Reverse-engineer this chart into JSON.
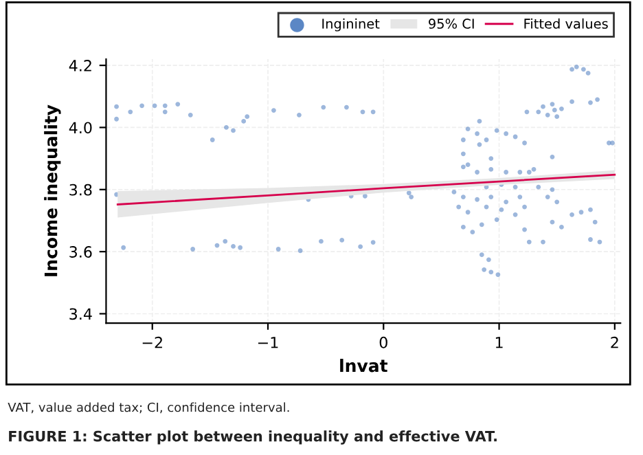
{
  "chart_data": {
    "type": "scatter",
    "xlabel": "lnvat",
    "ylabel": "Income inequality",
    "xlim": [
      -2.4,
      2.05
    ],
    "ylim": [
      3.37,
      4.22
    ],
    "xticks": [
      {
        "value": -2,
        "label": "−2"
      },
      {
        "value": -1,
        "label": "−1"
      },
      0,
      1,
      2
    ],
    "yticks": [
      3.4,
      3.6,
      3.8,
      {
        "value": 4,
        "label": "4.0"
      },
      4.2
    ],
    "grid": true,
    "legend": "top right",
    "annotations": [
      "95% CI",
      "VAT, value added tax; CI, confidence interval.",
      "FIGURE 1: Scatter plot between inequality and effective VAT."
    ],
    "series": [
      {
        "name": "Ingininet",
        "color": "#5b87c5",
        "marker": "circle",
        "x": [
          -2.31,
          -2.31,
          -2.19,
          -2.09,
          -1.98,
          -1.89,
          -1.89,
          -1.78,
          -1.67,
          -1.48,
          -1.36,
          -1.3,
          -1.21,
          -1.18,
          -0.95,
          -0.73,
          -0.52,
          -0.32,
          -0.18,
          -0.09,
          -2.25,
          -1.65,
          -1.44,
          -1.37,
          -1.3,
          -1.24,
          -0.91,
          -0.72,
          -0.54,
          -0.36,
          -0.2,
          -0.09,
          -2.31,
          -0.65,
          -0.28,
          -0.16,
          0.22,
          0.24,
          0.83,
          0.73,
          0.81,
          0.69,
          0.89,
          0.98,
          1.06,
          1.14,
          1.22,
          0.69,
          0.83,
          0.73,
          0.93,
          1.46,
          1.95,
          1.98,
          1.67,
          1.73,
          1.77,
          1.63,
          1.38,
          1.46,
          1.54,
          1.42,
          1.5,
          1.63,
          1.79,
          1.85,
          1.24,
          1.34,
          1.48,
          0.69,
          0.81,
          0.93,
          1.06,
          1.18,
          1.26,
          0.89,
          1.02,
          1.14,
          0.69,
          0.81,
          0.93,
          1.06,
          1.18,
          0.89,
          1.02,
          0.73,
          0.69,
          0.77,
          0.85,
          0.98,
          1.14,
          1.22,
          1.26,
          1.38,
          1.46,
          1.42,
          1.5,
          1.46,
          1.34,
          1.71,
          1.79,
          1.83,
          1.79,
          1.87,
          1.54,
          0.85,
          0.91,
          0.93,
          0.99,
          0.87,
          0.65,
          0.61,
          1.63,
          1.22,
          1.3
        ],
        "values": [
          4.067,
          4.027,
          4.05,
          4.07,
          4.07,
          4.07,
          4.05,
          4.075,
          4.04,
          3.96,
          4.0,
          3.99,
          4.02,
          4.035,
          4.055,
          4.04,
          4.065,
          4.065,
          4.05,
          4.05,
          3.613,
          3.608,
          3.62,
          3.633,
          3.617,
          3.613,
          3.608,
          3.603,
          3.633,
          3.637,
          3.616,
          3.63,
          3.784,
          3.768,
          3.779,
          3.779,
          3.789,
          3.776,
          4.02,
          3.995,
          3.98,
          3.96,
          3.96,
          3.99,
          3.98,
          3.97,
          3.95,
          3.915,
          3.945,
          3.88,
          3.9,
          3.905,
          3.95,
          3.95,
          4.195,
          4.187,
          4.175,
          4.187,
          4.067,
          4.075,
          4.06,
          4.04,
          4.035,
          4.083,
          4.08,
          4.09,
          4.05,
          4.05,
          4.056,
          3.873,
          3.856,
          3.865,
          3.856,
          3.856,
          3.856,
          3.808,
          3.816,
          3.808,
          3.776,
          3.768,
          3.776,
          3.76,
          3.776,
          3.744,
          3.735,
          3.727,
          3.679,
          3.663,
          3.687,
          3.703,
          3.719,
          3.671,
          3.631,
          3.631,
          3.695,
          3.776,
          3.76,
          3.8,
          3.808,
          3.727,
          3.735,
          3.695,
          3.639,
          3.631,
          3.679,
          3.59,
          3.574,
          3.534,
          3.526,
          3.542,
          3.744,
          3.792,
          3.719,
          3.744,
          3.865
        ]
      },
      {
        "name": "Fitted values",
        "type": "line",
        "color": "#d6004c",
        "line_style": "solid",
        "x": [
          -2.3,
          -1,
          0,
          1,
          2
        ],
        "values": [
          3.752,
          3.781,
          3.804,
          3.826,
          3.848
        ],
        "lower": [
          3.71,
          3.757,
          3.79,
          3.815,
          3.834
        ],
        "upper": [
          3.795,
          3.805,
          3.818,
          3.837,
          3.862
        ]
      }
    ]
  }
}
